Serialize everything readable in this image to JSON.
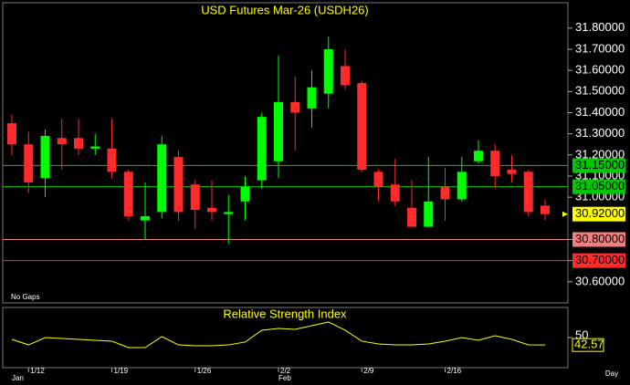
{
  "chart_data": [
    {
      "type": "candlestick",
      "title": "USD Futures Mar-26 (USDH26)",
      "note": "No Gaps",
      "categories": [
        null,
        "1/12",
        null,
        null,
        null,
        null,
        "1/19",
        null,
        null,
        null,
        null,
        "1/26",
        null,
        null,
        null,
        null,
        "2/2",
        null,
        null,
        null,
        null,
        "2/9",
        null,
        null,
        null,
        null,
        "2/16",
        null,
        null,
        null,
        null,
        null,
        null
      ],
      "month_categories": [
        "Jan",
        null,
        null,
        null,
        null,
        null,
        null,
        null,
        null,
        null,
        null,
        null,
        null,
        null,
        null,
        null,
        "Feb",
        null,
        null,
        null,
        null,
        null,
        null,
        null,
        null,
        null,
        null,
        null,
        null,
        null,
        null,
        null,
        null
      ],
      "x_unit": "Day",
      "open": [
        31.35,
        31.25,
        31.09,
        31.28,
        31.28,
        31.23,
        31.23,
        31.12,
        30.89,
        30.93,
        31.19,
        31.06,
        30.95,
        30.92,
        30.98,
        31.08,
        31.17,
        31.45,
        31.42,
        31.49,
        31.62,
        31.54,
        31.12,
        31.06,
        30.95,
        30.86,
        31.05,
        30.99,
        31.17,
        31.22,
        31.13,
        31.12,
        30.96
      ],
      "high": [
        31.39,
        31.31,
        31.32,
        31.37,
        31.37,
        31.3,
        31.37,
        31.13,
        31.07,
        31.29,
        31.22,
        31.08,
        31.08,
        31.01,
        31.1,
        31.4,
        31.67,
        31.57,
        31.6,
        31.76,
        31.7,
        31.55,
        31.13,
        31.18,
        31.08,
        31.19,
        31.14,
        31.19,
        31.27,
        31.25,
        31.2,
        31.13,
        30.99
      ],
      "low": [
        31.2,
        31.02,
        31.0,
        31.13,
        31.2,
        31.2,
        31.09,
        30.89,
        30.8,
        30.9,
        30.89,
        30.85,
        30.89,
        30.78,
        30.89,
        31.04,
        31.09,
        31.22,
        31.33,
        31.42,
        31.51,
        31.12,
        30.98,
        30.96,
        30.86,
        30.86,
        30.89,
        30.98,
        31.16,
        31.04,
        31.07,
        30.91,
        30.89
      ],
      "close": [
        31.25,
        31.07,
        31.29,
        31.25,
        31.23,
        31.24,
        31.12,
        30.91,
        30.91,
        31.25,
        30.93,
        30.94,
        30.93,
        30.93,
        31.05,
        31.38,
        31.45,
        31.4,
        31.52,
        31.7,
        31.53,
        31.13,
        31.05,
        30.98,
        30.86,
        30.98,
        30.99,
        31.12,
        31.22,
        31.1,
        31.11,
        30.93,
        30.92
      ],
      "up_color": "#00ff00",
      "down_color": "#ff2a2a",
      "ylim": [
        30.5,
        31.92
      ],
      "yticks": [
        {
          "value": 30.6,
          "label": "30.60000"
        },
        {
          "value": 30.7,
          "label": "30.70000"
        },
        {
          "value": 30.8,
          "label": "30.80000"
        },
        {
          "value": 31.0,
          "label": "31.00000"
        },
        {
          "value": 31.1,
          "label": "31.10000"
        },
        {
          "value": 31.2,
          "label": "31.20000"
        },
        {
          "value": 31.3,
          "label": "31.30000"
        },
        {
          "value": 31.4,
          "label": "31.40000"
        },
        {
          "value": 31.5,
          "label": "31.50000"
        },
        {
          "value": 31.6,
          "label": "31.60000"
        },
        {
          "value": 31.7,
          "label": "31.70000"
        },
        {
          "value": 31.8,
          "label": "31.80000"
        }
      ],
      "levels": [
        {
          "value": 31.15,
          "label": "31.15000",
          "color": "#00c800"
        },
        {
          "value": 31.05,
          "label": "31.05000",
          "color": "#00c800"
        },
        {
          "value": 30.8,
          "label": "30.80000",
          "color": "#f08080"
        },
        {
          "value": 30.7,
          "label": "30.70000",
          "color": "#ff2a2a"
        }
      ],
      "last_price": {
        "value": 30.92,
        "label": "30.92000",
        "color": "#ffff00"
      }
    },
    {
      "type": "line",
      "title": "Relative Strength Index",
      "color": "#ffff00",
      "values": [
        48.2,
        42.7,
        50,
        49.1,
        48.2,
        47.3,
        46.4,
        40,
        40,
        50.9,
        42.7,
        41.8,
        41.8,
        42.7,
        45.5,
        57.3,
        59.1,
        58.2,
        61.8,
        65.5,
        57.3,
        46.4,
        43.6,
        42.7,
        42.7,
        43.6,
        46.4,
        50,
        47.3,
        51.8,
        48.2,
        42.7,
        42.57
      ],
      "ylim": [
        20,
        80
      ],
      "yticks": [
        50
      ]
    }
  ]
}
